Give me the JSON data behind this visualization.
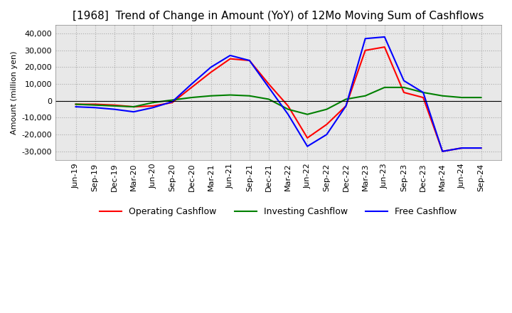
{
  "title": "[1968]  Trend of Change in Amount (YoY) of 12Mo Moving Sum of Cashflows",
  "ylabel": "Amount (million yen)",
  "ylim": [
    -35000,
    45000
  ],
  "yticks": [
    -30000,
    -20000,
    -10000,
    0,
    10000,
    20000,
    30000,
    40000
  ],
  "x_labels": [
    "Jun-19",
    "Sep-19",
    "Dec-19",
    "Mar-20",
    "Jun-20",
    "Sep-20",
    "Dec-20",
    "Mar-21",
    "Jun-21",
    "Sep-21",
    "Dec-21",
    "Mar-22",
    "Jun-22",
    "Sep-22",
    "Dec-22",
    "Mar-23",
    "Jun-23",
    "Sep-23",
    "Dec-23",
    "Mar-24",
    "Jun-24",
    "Sep-24"
  ],
  "operating_cashflow": [
    -2000,
    -2000,
    -2500,
    -3500,
    -3000,
    -1000,
    8000,
    17000,
    25000,
    24000,
    10000,
    -3000,
    -22000,
    -14000,
    -3000,
    30000,
    32000,
    5000,
    2000,
    -30000,
    -28000,
    -28000
  ],
  "investing_cashflow": [
    -2000,
    -2500,
    -3000,
    -3500,
    -1000,
    500,
    2000,
    3000,
    3500,
    3000,
    1000,
    -5000,
    -8000,
    -5000,
    1000,
    3000,
    8000,
    8000,
    5000,
    3000,
    2000,
    2000
  ],
  "free_cashflow": [
    -3500,
    -4000,
    -5000,
    -6500,
    -4000,
    -500,
    10000,
    20000,
    27000,
    24000,
    8000,
    -8000,
    -27000,
    -20000,
    -3000,
    37000,
    38000,
    12000,
    5000,
    -30000,
    -28000,
    -28000
  ],
  "operating_color": "#ff0000",
  "investing_color": "#008000",
  "free_color": "#0000ff",
  "background_color": "#ffffff",
  "plot_bg_color": "#e8e8e8",
  "grid_color": "#aaaaaa",
  "title_fontsize": 11,
  "axis_fontsize": 8,
  "legend_fontsize": 9
}
